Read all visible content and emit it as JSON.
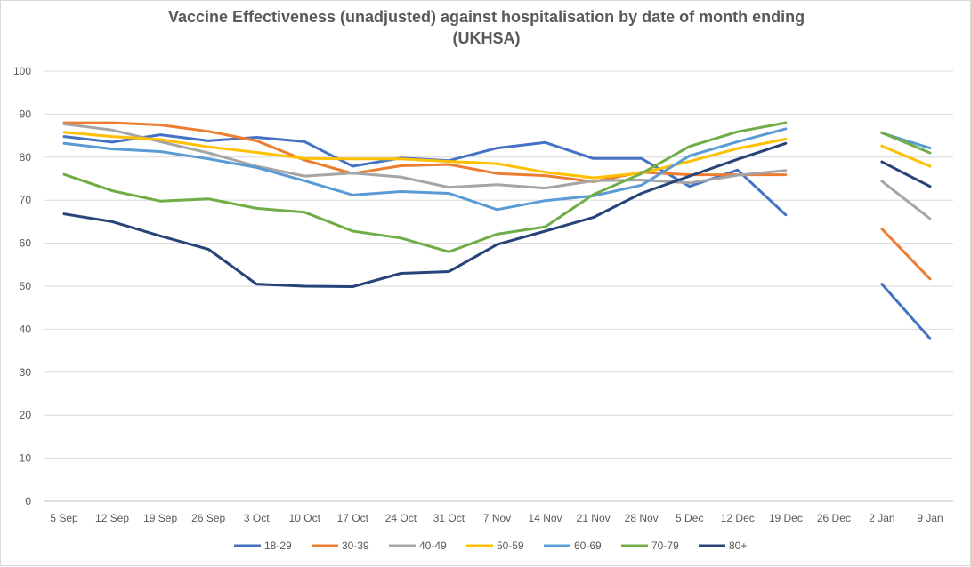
{
  "chart_data": {
    "type": "line",
    "title_line1": "Vaccine  Effectiveness (unadjusted) against hospitalisation by date of month ending",
    "title_line2": "(UKHSA)",
    "xlabel": "",
    "ylabel": "",
    "ylim": [
      0,
      100
    ],
    "y_ticks": [
      0,
      10,
      20,
      30,
      40,
      50,
      60,
      70,
      80,
      90,
      100
    ],
    "grid": true,
    "legend_position": "bottom",
    "categories": [
      "5 Sep",
      "12 Sep",
      "19 Sep",
      "26 Sep",
      "3 Oct",
      "10 Oct",
      "17 Oct",
      "24 Oct",
      "31 Oct",
      "7 Nov",
      "14 Nov",
      "21 Nov",
      "28 Nov",
      "5 Dec",
      "12 Dec",
      "19 Dec",
      "26 Dec",
      "2 Jan",
      "9 Jan"
    ],
    "series": [
      {
        "name": "18-29",
        "color": "#4472c4",
        "values": [
          84.8,
          83.5,
          85.2,
          83.8,
          84.6,
          83.6,
          77.9,
          79.8,
          79.2,
          82.1,
          83.4,
          79.7,
          79.7,
          73.2,
          77.0,
          66.6,
          null,
          50.5,
          37.8
        ]
      },
      {
        "name": "30-39",
        "color": "#ed7d31",
        "values": [
          88.0,
          88.0,
          87.5,
          86.0,
          83.8,
          79.3,
          76.2,
          78.0,
          78.3,
          76.2,
          75.7,
          74.3,
          76.5,
          75.9,
          75.9,
          75.9,
          null,
          63.3,
          51.7
        ]
      },
      {
        "name": "40-49",
        "color": "#a5a5a5",
        "values": [
          87.7,
          86.3,
          83.6,
          81.0,
          77.9,
          75.6,
          76.3,
          75.4,
          73.0,
          73.6,
          72.8,
          74.5,
          74.7,
          74.0,
          75.8,
          76.9,
          null,
          74.4,
          65.7
        ]
      },
      {
        "name": "50-59",
        "color": "#ffc000",
        "values": [
          85.8,
          84.8,
          84.1,
          82.4,
          81.1,
          79.7,
          79.6,
          79.6,
          79.0,
          78.5,
          76.5,
          75.2,
          76.3,
          79.0,
          82.0,
          84.2,
          null,
          82.6,
          77.9
        ]
      },
      {
        "name": "60-69",
        "color": "#5b9bd5",
        "values": [
          83.2,
          81.9,
          81.3,
          79.6,
          77.6,
          74.5,
          71.2,
          72.0,
          71.6,
          67.8,
          69.9,
          71.0,
          73.5,
          80.3,
          83.6,
          86.6,
          null,
          85.6,
          82.1
        ]
      },
      {
        "name": "70-79",
        "color": "#70ad47",
        "values": [
          76.0,
          72.2,
          69.8,
          70.3,
          68.1,
          67.2,
          62.8,
          61.2,
          58.0,
          62.1,
          63.8,
          71.3,
          76.2,
          82.5,
          85.9,
          88.0,
          null,
          85.7,
          81.0
        ]
      },
      {
        "name": "80+",
        "color": "#264478",
        "values": [
          66.8,
          65.0,
          61.7,
          58.6,
          50.5,
          50.0,
          49.9,
          53.0,
          53.4,
          59.7,
          62.8,
          66.0,
          71.6,
          75.6,
          79.5,
          83.2,
          null,
          78.9,
          73.2
        ]
      }
    ]
  }
}
